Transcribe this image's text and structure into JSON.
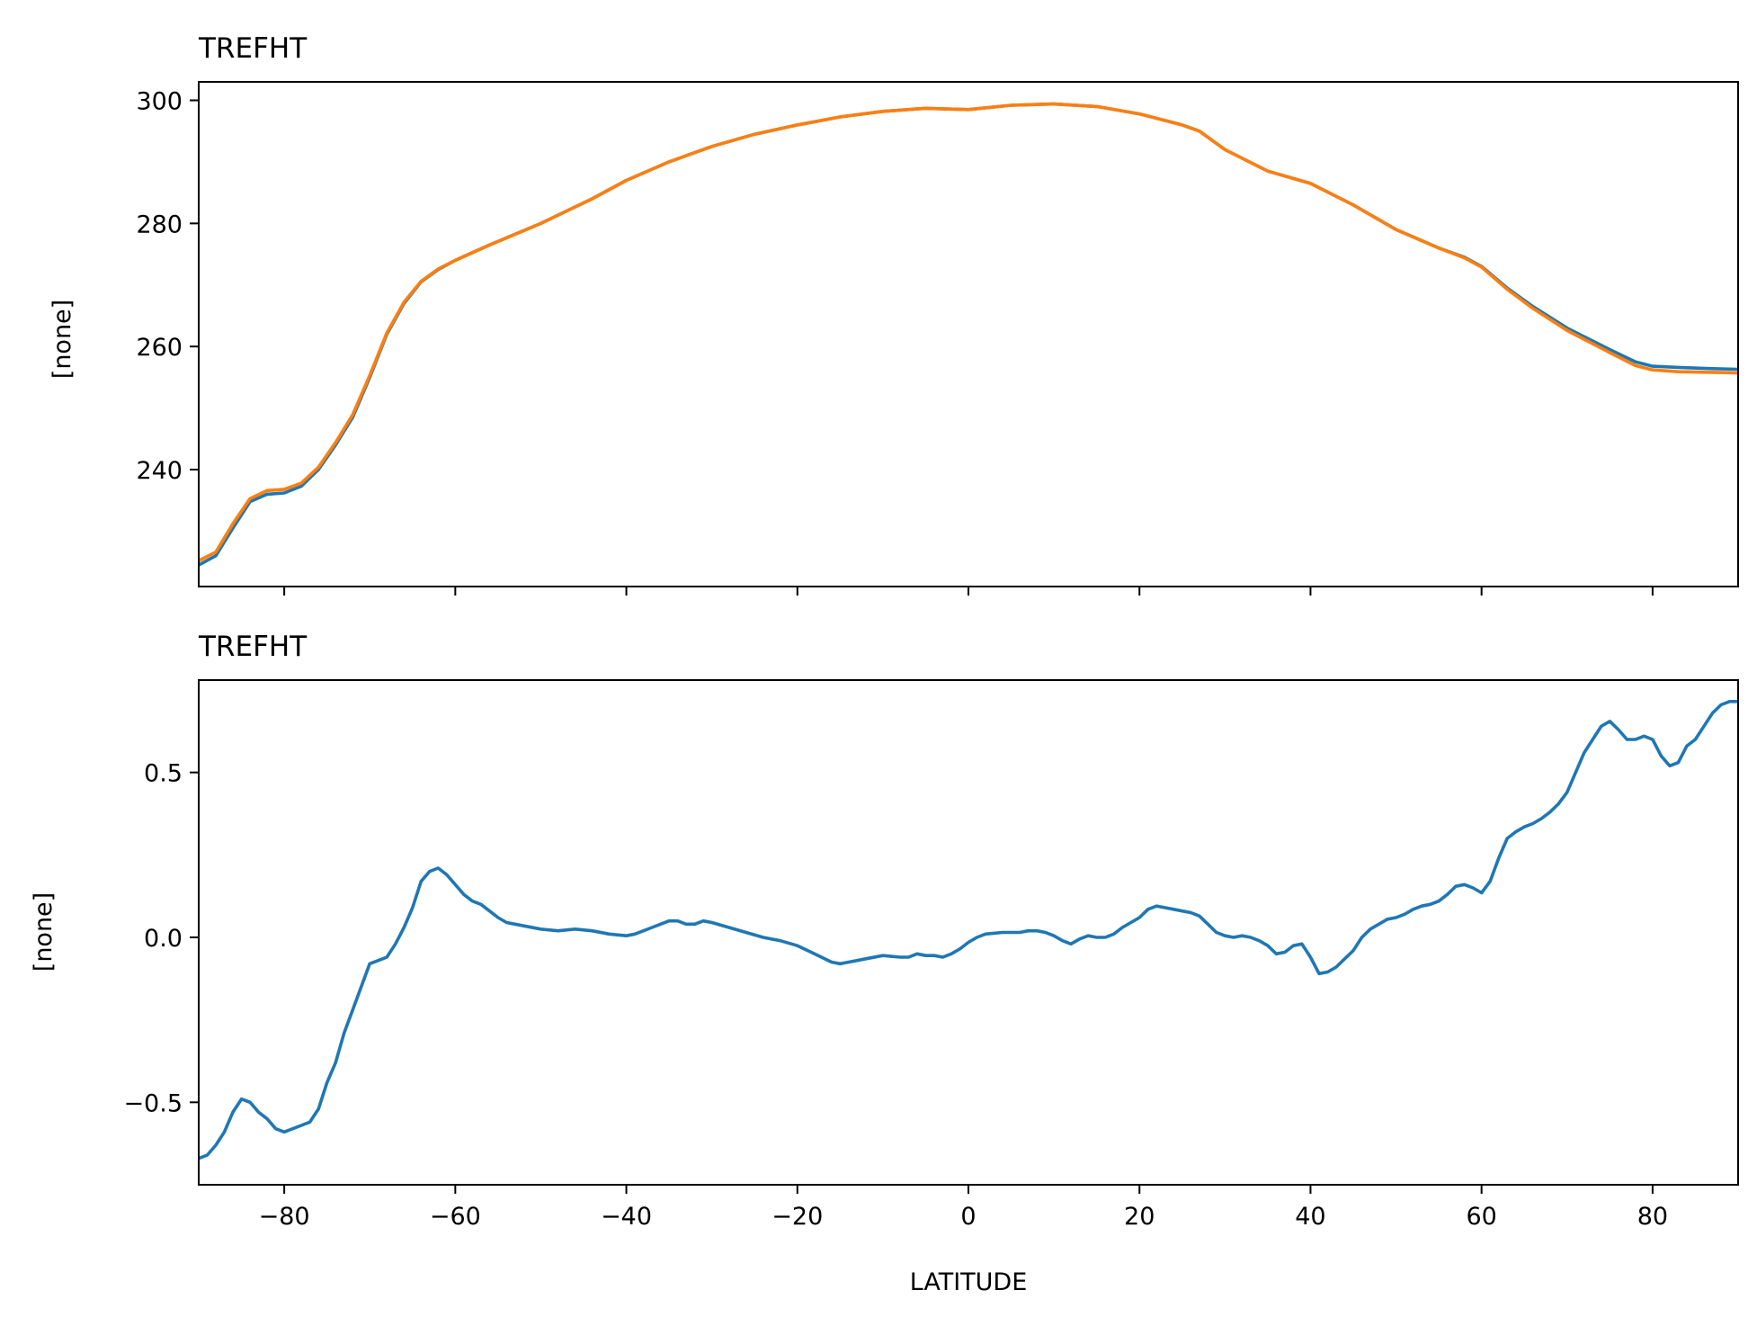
{
  "chart_data": [
    {
      "type": "line",
      "title": "TREFHT",
      "xlabel": "",
      "ylabel": "[none]",
      "xlim": [
        -90,
        90
      ],
      "ylim": [
        221,
        303
      ],
      "x_ticks": [
        -80,
        -60,
        -40,
        -20,
        0,
        20,
        40,
        60,
        80
      ],
      "x_tick_labels_visible": false,
      "y_ticks": [
        240,
        260,
        280,
        300
      ],
      "y_tick_labels": [
        "240",
        "260",
        "280",
        "300"
      ],
      "grid": false,
      "series": [
        {
          "color": "#1f77b4",
          "points": [
            [
              -90,
              224.5
            ],
            [
              -88,
              226.0
            ],
            [
              -86,
              230.5
            ],
            [
              -84,
              234.8
            ],
            [
              -82,
              236.0
            ],
            [
              -80,
              236.2
            ],
            [
              -78,
              237.3
            ],
            [
              -76,
              240.0
            ],
            [
              -74,
              244.0
            ],
            [
              -72,
              248.5
            ],
            [
              -70,
              255.0
            ],
            [
              -68,
              262.0
            ],
            [
              -66,
              267.0
            ],
            [
              -64,
              270.5
            ],
            [
              -62,
              272.5
            ],
            [
              -60,
              274.0
            ],
            [
              -56,
              276.5
            ],
            [
              -50,
              280.0
            ],
            [
              -44,
              284.0
            ],
            [
              -40,
              287.0
            ],
            [
              -35,
              290.0
            ],
            [
              -30,
              292.5
            ],
            [
              -25,
              294.5
            ],
            [
              -20,
              296.0
            ],
            [
              -15,
              297.3
            ],
            [
              -10,
              298.2
            ],
            [
              -5,
              298.7
            ],
            [
              0,
              298.5
            ],
            [
              5,
              299.2
            ],
            [
              10,
              299.4
            ],
            [
              15,
              299.0
            ],
            [
              20,
              297.8
            ],
            [
              25,
              296.0
            ],
            [
              27,
              295.0
            ],
            [
              30,
              292.0
            ],
            [
              35,
              288.5
            ],
            [
              40,
              286.5
            ],
            [
              45,
              283.0
            ],
            [
              50,
              279.0
            ],
            [
              55,
              276.0
            ],
            [
              58,
              274.5
            ],
            [
              60,
              273.0
            ],
            [
              63,
              269.5
            ],
            [
              66,
              266.5
            ],
            [
              70,
              263.0
            ],
            [
              75,
              259.5
            ],
            [
              78,
              257.5
            ],
            [
              80,
              256.8
            ],
            [
              83,
              256.6
            ],
            [
              87,
              256.4
            ],
            [
              90,
              256.3
            ]
          ]
        },
        {
          "color": "#ff7f0e",
          "points": [
            [
              -90,
              225.2
            ],
            [
              -88,
              226.6
            ],
            [
              -86,
              231.2
            ],
            [
              -84,
              235.3
            ],
            [
              -82,
              236.6
            ],
            [
              -80,
              236.8
            ],
            [
              -78,
              237.8
            ],
            [
              -76,
              240.4
            ],
            [
              -74,
              244.4
            ],
            [
              -72,
              248.9
            ],
            [
              -70,
              255.3
            ],
            [
              -68,
              262.2
            ],
            [
              -66,
              267.2
            ],
            [
              -64,
              270.6
            ],
            [
              -62,
              272.6
            ],
            [
              -60,
              274.0
            ],
            [
              -56,
              276.5
            ],
            [
              -50,
              280.0
            ],
            [
              -44,
              284.0
            ],
            [
              -40,
              287.0
            ],
            [
              -35,
              290.0
            ],
            [
              -30,
              292.5
            ],
            [
              -25,
              294.5
            ],
            [
              -20,
              296.0
            ],
            [
              -15,
              297.3
            ],
            [
              -10,
              298.2
            ],
            [
              -5,
              298.7
            ],
            [
              0,
              298.5
            ],
            [
              5,
              299.2
            ],
            [
              10,
              299.4
            ],
            [
              15,
              299.0
            ],
            [
              20,
              297.8
            ],
            [
              25,
              296.0
            ],
            [
              27,
              295.0
            ],
            [
              30,
              292.0
            ],
            [
              35,
              288.5
            ],
            [
              40,
              286.5
            ],
            [
              45,
              283.0
            ],
            [
              50,
              279.0
            ],
            [
              55,
              276.0
            ],
            [
              58,
              274.4
            ],
            [
              60,
              272.9
            ],
            [
              63,
              269.3
            ],
            [
              66,
              266.2
            ],
            [
              70,
              262.6
            ],
            [
              75,
              259.0
            ],
            [
              78,
              256.9
            ],
            [
              80,
              256.2
            ],
            [
              83,
              255.9
            ],
            [
              87,
              255.8
            ],
            [
              90,
              255.7
            ]
          ]
        }
      ]
    },
    {
      "type": "line",
      "title": "TREFHT",
      "xlabel": "LATITUDE",
      "ylabel": "[none]",
      "xlim": [
        -90,
        90
      ],
      "ylim": [
        -0.75,
        0.78
      ],
      "x_ticks": [
        -80,
        -60,
        -40,
        -20,
        0,
        20,
        40,
        60,
        80
      ],
      "x_tick_labels": [
        "−80",
        "−60",
        "−40",
        "−20",
        "0",
        "20",
        "40",
        "60",
        "80"
      ],
      "y_ticks": [
        -0.5,
        0.0,
        0.5
      ],
      "y_tick_labels": [
        "−0.5",
        "0.0",
        "0.5"
      ],
      "grid": false,
      "series": [
        {
          "color": "#1f77b4",
          "points": [
            [
              -90,
              -0.67
            ],
            [
              -89,
              -0.66
            ],
            [
              -88,
              -0.63
            ],
            [
              -87,
              -0.59
            ],
            [
              -86,
              -0.53
            ],
            [
              -85,
              -0.49
            ],
            [
              -84,
              -0.5
            ],
            [
              -83,
              -0.53
            ],
            [
              -82,
              -0.55
            ],
            [
              -81,
              -0.58
            ],
            [
              -80,
              -0.59
            ],
            [
              -79,
              -0.58
            ],
            [
              -78,
              -0.57
            ],
            [
              -77,
              -0.56
            ],
            [
              -76,
              -0.52
            ],
            [
              -75,
              -0.44
            ],
            [
              -74,
              -0.38
            ],
            [
              -73,
              -0.29
            ],
            [
              -72,
              -0.22
            ],
            [
              -71,
              -0.15
            ],
            [
              -70,
              -0.08
            ],
            [
              -69,
              -0.07
            ],
            [
              -68,
              -0.06
            ],
            [
              -67,
              -0.02
            ],
            [
              -66,
              0.03
            ],
            [
              -65,
              0.09
            ],
            [
              -64,
              0.17
            ],
            [
              -63,
              0.2
            ],
            [
              -62,
              0.21
            ],
            [
              -61,
              0.19
            ],
            [
              -60,
              0.16
            ],
            [
              -59,
              0.13
            ],
            [
              -58,
              0.11
            ],
            [
              -57,
              0.1
            ],
            [
              -56,
              0.08
            ],
            [
              -55,
              0.06
            ],
            [
              -54,
              0.045
            ],
            [
              -52,
              0.035
            ],
            [
              -50,
              0.025
            ],
            [
              -48,
              0.02
            ],
            [
              -46,
              0.025
            ],
            [
              -44,
              0.02
            ],
            [
              -42,
              0.01
            ],
            [
              -40,
              0.005
            ],
            [
              -39,
              0.01
            ],
            [
              -38,
              0.02
            ],
            [
              -37,
              0.03
            ],
            [
              -36,
              0.04
            ],
            [
              -35,
              0.05
            ],
            [
              -34,
              0.05
            ],
            [
              -33,
              0.04
            ],
            [
              -32,
              0.04
            ],
            [
              -31,
              0.05
            ],
            [
              -30,
              0.045
            ],
            [
              -28,
              0.03
            ],
            [
              -26,
              0.015
            ],
            [
              -24,
              0.0
            ],
            [
              -22,
              -0.01
            ],
            [
              -20,
              -0.025
            ],
            [
              -18,
              -0.05
            ],
            [
              -16,
              -0.075
            ],
            [
              -15,
              -0.08
            ],
            [
              -14,
              -0.075
            ],
            [
              -12,
              -0.065
            ],
            [
              -10,
              -0.055
            ],
            [
              -8,
              -0.06
            ],
            [
              -7,
              -0.06
            ],
            [
              -6,
              -0.05
            ],
            [
              -5,
              -0.055
            ],
            [
              -4,
              -0.055
            ],
            [
              -3,
              -0.06
            ],
            [
              -2,
              -0.05
            ],
            [
              -1,
              -0.035
            ],
            [
              0,
              -0.015
            ],
            [
              1,
              0.0
            ],
            [
              2,
              0.01
            ],
            [
              4,
              0.015
            ],
            [
              6,
              0.015
            ],
            [
              7,
              0.02
            ],
            [
              8,
              0.02
            ],
            [
              9,
              0.015
            ],
            [
              10,
              0.005
            ],
            [
              11,
              -0.01
            ],
            [
              12,
              -0.02
            ],
            [
              13,
              -0.005
            ],
            [
              14,
              0.005
            ],
            [
              15,
              0.0
            ],
            [
              16,
              0.0
            ],
            [
              17,
              0.01
            ],
            [
              18,
              0.03
            ],
            [
              19,
              0.045
            ],
            [
              20,
              0.06
            ],
            [
              21,
              0.085
            ],
            [
              22,
              0.095
            ],
            [
              23,
              0.09
            ],
            [
              24,
              0.085
            ],
            [
              25,
              0.08
            ],
            [
              26,
              0.075
            ],
            [
              27,
              0.065
            ],
            [
              28,
              0.04
            ],
            [
              29,
              0.015
            ],
            [
              30,
              0.005
            ],
            [
              31,
              0.0
            ],
            [
              32,
              0.005
            ],
            [
              33,
              0.0
            ],
            [
              34,
              -0.01
            ],
            [
              35,
              -0.025
            ],
            [
              36,
              -0.05
            ],
            [
              37,
              -0.045
            ],
            [
              38,
              -0.025
            ],
            [
              39,
              -0.02
            ],
            [
              40,
              -0.06
            ],
            [
              41,
              -0.11
            ],
            [
              42,
              -0.105
            ],
            [
              43,
              -0.09
            ],
            [
              44,
              -0.065
            ],
            [
              45,
              -0.04
            ],
            [
              46,
              0.0
            ],
            [
              47,
              0.025
            ],
            [
              48,
              0.04
            ],
            [
              49,
              0.055
            ],
            [
              50,
              0.06
            ],
            [
              51,
              0.07
            ],
            [
              52,
              0.085
            ],
            [
              53,
              0.095
            ],
            [
              54,
              0.1
            ],
            [
              55,
              0.11
            ],
            [
              56,
              0.13
            ],
            [
              57,
              0.155
            ],
            [
              58,
              0.16
            ],
            [
              59,
              0.15
            ],
            [
              60,
              0.135
            ],
            [
              61,
              0.17
            ],
            [
              62,
              0.24
            ],
            [
              63,
              0.3
            ],
            [
              64,
              0.32
            ],
            [
              65,
              0.335
            ],
            [
              66,
              0.345
            ],
            [
              67,
              0.36
            ],
            [
              68,
              0.38
            ],
            [
              69,
              0.405
            ],
            [
              70,
              0.44
            ],
            [
              71,
              0.5
            ],
            [
              72,
              0.56
            ],
            [
              73,
              0.6
            ],
            [
              74,
              0.64
            ],
            [
              75,
              0.655
            ],
            [
              76,
              0.63
            ],
            [
              77,
              0.6
            ],
            [
              78,
              0.6
            ],
            [
              79,
              0.61
            ],
            [
              80,
              0.6
            ],
            [
              81,
              0.55
            ],
            [
              82,
              0.52
            ],
            [
              83,
              0.53
            ],
            [
              84,
              0.58
            ],
            [
              85,
              0.6
            ],
            [
              86,
              0.64
            ],
            [
              87,
              0.68
            ],
            [
              88,
              0.705
            ],
            [
              89,
              0.715
            ],
            [
              90,
              0.715
            ]
          ]
        }
      ]
    }
  ]
}
